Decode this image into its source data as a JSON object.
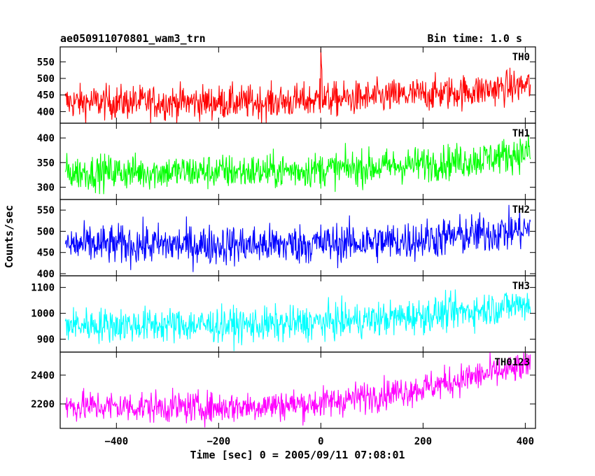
{
  "header": {
    "title": "ae050911070801_wam3_trn",
    "bin_time": "Bin time: 1.0 s"
  },
  "chart_data": {
    "type": "line",
    "xlabel": "Time [sec] 0 = 2005/09/11 07:08:01",
    "ylabel": "Counts/sec",
    "xlim": [
      -510,
      420
    ],
    "x_ticks": [
      -400,
      -200,
      0,
      200,
      400
    ],
    "x_tick_labels": [
      "−400",
      "−200",
      "0",
      "200",
      "400"
    ],
    "data_x_range": [
      -500,
      410
    ],
    "panels": [
      {
        "name": "TH0",
        "color": "#ff0000",
        "ylim": [
          365,
          595
        ],
        "yticks": [
          400,
          450,
          500,
          550
        ],
        "ytick_labels": [
          "400",
          "450",
          "500",
          "550"
        ],
        "trend": [
          [
            -500,
            428
          ],
          [
            -100,
            428
          ],
          [
            100,
            442
          ],
          [
            300,
            462
          ],
          [
            410,
            480
          ]
        ],
        "noise": 26,
        "spikes": [
          [
            0,
            590
          ],
          [
            1,
            545
          ],
          [
            2,
            525
          ],
          [
            -2,
            500
          ]
        ]
      },
      {
        "name": "TH1",
        "color": "#00ff00",
        "ylim": [
          275,
          430
        ],
        "yticks": [
          300,
          350,
          400
        ],
        "ytick_labels": [
          "300",
          "350",
          "400"
        ],
        "trend": [
          [
            -500,
            330
          ],
          [
            -100,
            332
          ],
          [
            100,
            340
          ],
          [
            300,
            355
          ],
          [
            410,
            372
          ]
        ],
        "noise": 18,
        "spikes": []
      },
      {
        "name": "TH2",
        "color": "#0000ff",
        "ylim": [
          395,
          575
        ],
        "yticks": [
          400,
          450,
          500,
          550
        ],
        "ytick_labels": [
          "400",
          "450",
          "500",
          "550"
        ],
        "trend": [
          [
            -500,
            468
          ],
          [
            -100,
            468
          ],
          [
            150,
            476
          ],
          [
            300,
            492
          ],
          [
            410,
            505
          ]
        ],
        "noise": 24,
        "spikes": []
      },
      {
        "name": "TH3",
        "color": "#00ffff",
        "ylim": [
          850,
          1145
        ],
        "yticks": [
          900,
          1000,
          1100
        ],
        "ytick_labels": [
          "900",
          "1000",
          "1100"
        ],
        "trend": [
          [
            -500,
            955
          ],
          [
            -100,
            955
          ],
          [
            100,
            975
          ],
          [
            300,
            1010
          ],
          [
            410,
            1040
          ]
        ],
        "noise": 34,
        "spikes": []
      },
      {
        "name": "TH0123",
        "color": "#ff00ff",
        "ylim": [
          2030,
          2560
        ],
        "yticks": [
          2200,
          2400
        ],
        "ytick_labels": [
          "2200",
          "2400"
        ],
        "trend": [
          [
            -500,
            2185
          ],
          [
            -200,
            2175
          ],
          [
            0,
            2205
          ],
          [
            200,
            2310
          ],
          [
            300,
            2390
          ],
          [
            410,
            2460
          ]
        ],
        "noise": 55,
        "spikes": []
      }
    ]
  }
}
